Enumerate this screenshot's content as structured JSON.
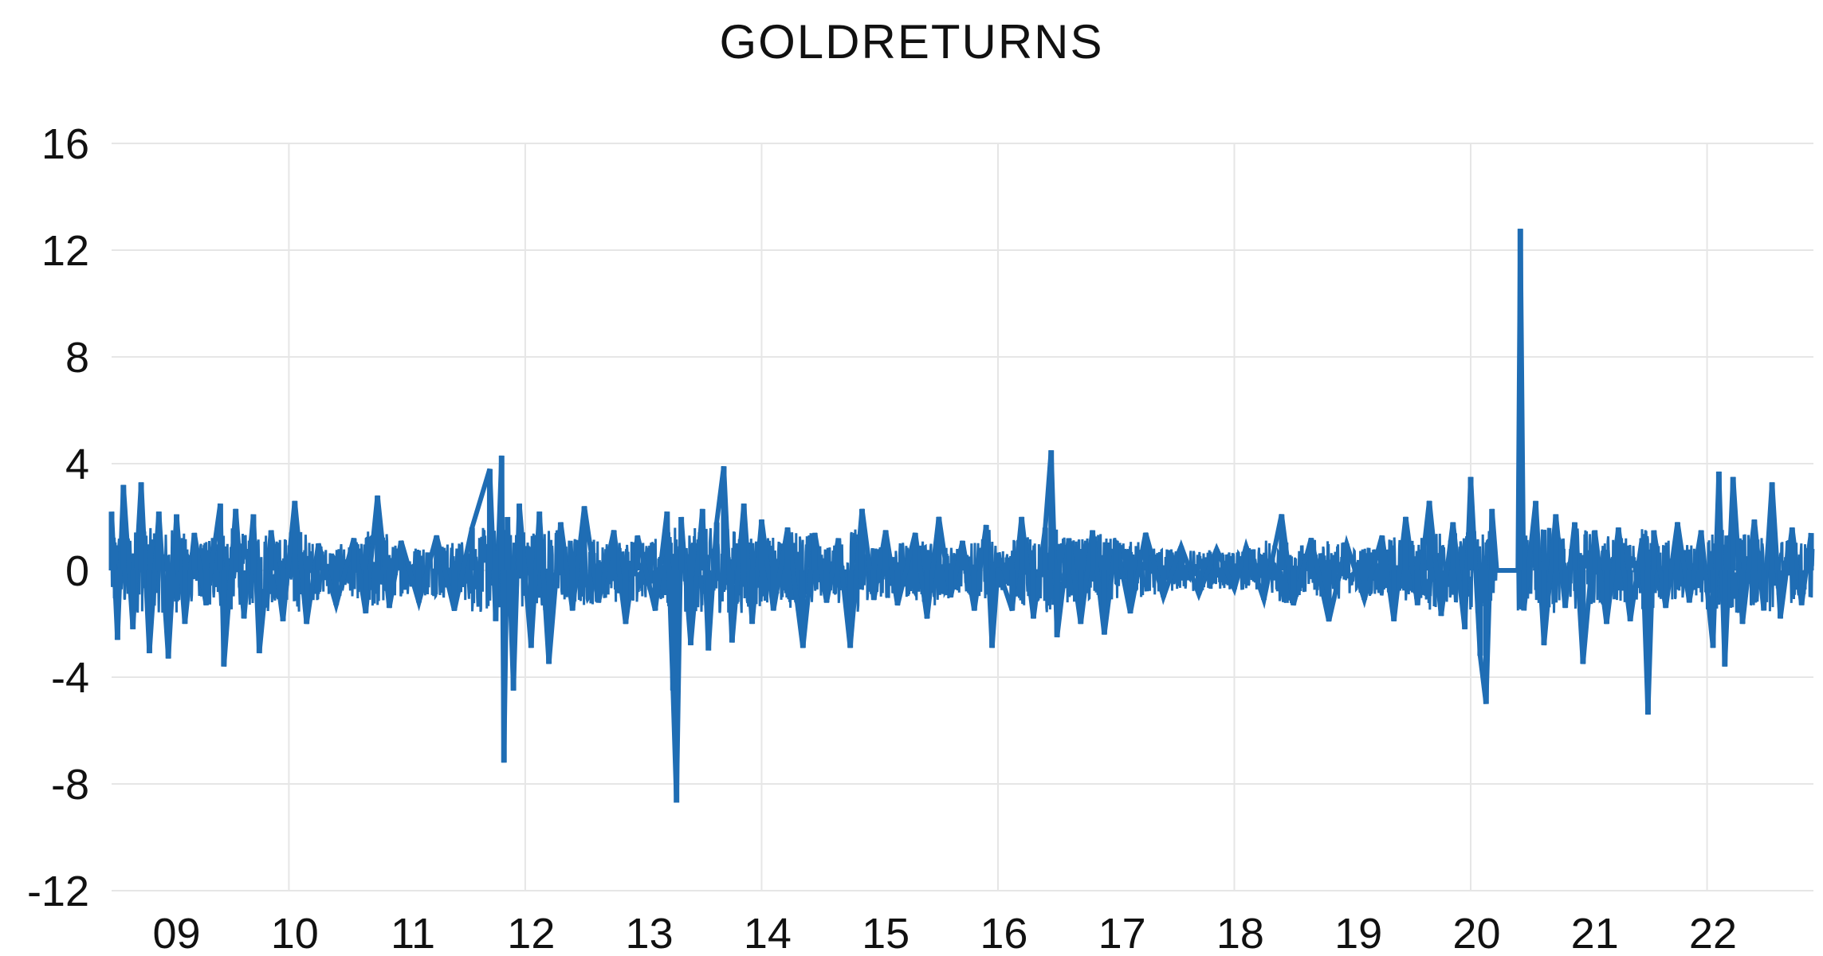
{
  "chart_data": {
    "type": "line",
    "title": "GOLDRETURNS",
    "xlabel": "",
    "ylabel": "",
    "x_ticks": [
      "09",
      "10",
      "11",
      "12",
      "13",
      "14",
      "15",
      "16",
      "17",
      "18",
      "19",
      "20",
      "21",
      "22"
    ],
    "y_ticks": [
      16,
      12,
      8,
      4,
      0,
      -4,
      -8,
      -12
    ],
    "ylim": [
      -12,
      16
    ],
    "xlim": [
      2008.5,
      2022.9
    ],
    "grid": true,
    "colors": {
      "series": "#1f6db4",
      "grid": "#e6e6e6",
      "text": "#111111"
    },
    "series": [
      {
        "values": [
          [
            2008.5,
            2.2
          ],
          [
            2008.55,
            -2.6
          ],
          [
            2008.6,
            3.2
          ],
          [
            2008.68,
            -2.2
          ],
          [
            2008.75,
            3.3
          ],
          [
            2008.82,
            -3.1
          ],
          [
            2008.9,
            2.2
          ],
          [
            2008.98,
            -3.3
          ],
          [
            2009.05,
            2.1
          ],
          [
            2009.12,
            -2.0
          ],
          [
            2009.2,
            1.4
          ],
          [
            2009.3,
            -1.3
          ],
          [
            2009.42,
            2.5
          ],
          [
            2009.45,
            -3.6
          ],
          [
            2009.55,
            2.3
          ],
          [
            2009.62,
            -1.8
          ],
          [
            2009.7,
            2.1
          ],
          [
            2009.75,
            -3.1
          ],
          [
            2009.85,
            1.5
          ],
          [
            2009.95,
            -1.9
          ],
          [
            2010.05,
            2.6
          ],
          [
            2010.15,
            -2.0
          ],
          [
            2010.25,
            1.0
          ],
          [
            2010.4,
            -1.3
          ],
          [
            2010.55,
            1.2
          ],
          [
            2010.65,
            -1.6
          ],
          [
            2010.75,
            2.8
          ],
          [
            2010.85,
            -1.4
          ],
          [
            2010.95,
            1.1
          ],
          [
            2011.1,
            -1.2
          ],
          [
            2011.25,
            1.3
          ],
          [
            2011.4,
            -1.5
          ],
          [
            2011.55,
            1.6
          ],
          [
            2011.7,
            3.8
          ],
          [
            2011.75,
            -1.9
          ],
          [
            2011.8,
            4.3
          ],
          [
            2011.82,
            -7.2
          ],
          [
            2011.85,
            2.0
          ],
          [
            2011.9,
            -4.5
          ],
          [
            2011.95,
            2.5
          ],
          [
            2012.05,
            -2.9
          ],
          [
            2012.12,
            2.2
          ],
          [
            2012.2,
            -3.5
          ],
          [
            2012.3,
            1.8
          ],
          [
            2012.4,
            -1.5
          ],
          [
            2012.5,
            2.4
          ],
          [
            2012.62,
            -1.2
          ],
          [
            2012.75,
            1.5
          ],
          [
            2012.85,
            -2.0
          ],
          [
            2012.95,
            1.3
          ],
          [
            2013.1,
            -1.5
          ],
          [
            2013.2,
            2.2
          ],
          [
            2013.25,
            -4.5
          ],
          [
            2013.28,
            -8.7
          ],
          [
            2013.32,
            2.0
          ],
          [
            2013.4,
            -2.8
          ],
          [
            2013.5,
            2.3
          ],
          [
            2013.55,
            -3.0
          ],
          [
            2013.62,
            1.8
          ],
          [
            2013.68,
            3.9
          ],
          [
            2013.75,
            -2.7
          ],
          [
            2013.85,
            2.5
          ],
          [
            2013.92,
            -2.0
          ],
          [
            2014.0,
            1.9
          ],
          [
            2014.1,
            -1.5
          ],
          [
            2014.22,
            1.6
          ],
          [
            2014.35,
            -2.9
          ],
          [
            2014.45,
            1.4
          ],
          [
            2014.55,
            -1.2
          ],
          [
            2014.65,
            1.2
          ],
          [
            2014.75,
            -2.9
          ],
          [
            2014.85,
            2.3
          ],
          [
            2014.95,
            -1.1
          ],
          [
            2015.05,
            1.5
          ],
          [
            2015.15,
            -1.3
          ],
          [
            2015.3,
            1.4
          ],
          [
            2015.4,
            -1.8
          ],
          [
            2015.5,
            2.0
          ],
          [
            2015.6,
            -1.0
          ],
          [
            2015.7,
            1.1
          ],
          [
            2015.8,
            -1.5
          ],
          [
            2015.9,
            1.7
          ],
          [
            2015.95,
            -2.9
          ],
          [
            2016.0,
            0.1
          ],
          [
            2016.12,
            -1.5
          ],
          [
            2016.2,
            2.0
          ],
          [
            2016.3,
            -1.8
          ],
          [
            2016.4,
            1.6
          ],
          [
            2016.45,
            4.5
          ],
          [
            2016.5,
            -2.5
          ],
          [
            2016.6,
            1.2
          ],
          [
            2016.7,
            -2.0
          ],
          [
            2016.8,
            1.5
          ],
          [
            2016.9,
            -2.4
          ],
          [
            2017.0,
            1.1
          ],
          [
            2017.12,
            -1.6
          ],
          [
            2017.25,
            1.4
          ],
          [
            2017.4,
            -1.0
          ],
          [
            2017.55,
            0.9
          ],
          [
            2017.7,
            -0.9
          ],
          [
            2017.85,
            0.8
          ],
          [
            2018.0,
            -0.7
          ],
          [
            2018.1,
            0.9
          ],
          [
            2018.25,
            -1.1
          ],
          [
            2018.4,
            2.1
          ],
          [
            2018.5,
            -1.3
          ],
          [
            2018.65,
            1.2
          ],
          [
            2018.8,
            -1.9
          ],
          [
            2018.95,
            1.0
          ],
          [
            2019.1,
            -1.1
          ],
          [
            2019.25,
            1.3
          ],
          [
            2019.35,
            -1.9
          ],
          [
            2019.45,
            2.0
          ],
          [
            2019.55,
            -1.3
          ],
          [
            2019.65,
            2.6
          ],
          [
            2019.75,
            -1.7
          ],
          [
            2019.85,
            1.8
          ],
          [
            2019.95,
            -2.2
          ],
          [
            2020.0,
            3.5
          ],
          [
            2020.08,
            -3.2
          ],
          [
            2020.13,
            -5.0
          ],
          [
            2020.18,
            2.3
          ],
          [
            2020.22,
            0.0
          ],
          [
            2020.32,
            0.0
          ],
          [
            2020.4,
            0.0
          ],
          [
            2020.42,
            12.8
          ],
          [
            2020.45,
            -1.5
          ],
          [
            2020.55,
            2.6
          ],
          [
            2020.62,
            -2.8
          ],
          [
            2020.72,
            2.1
          ],
          [
            2020.8,
            -1.4
          ],
          [
            2020.88,
            1.8
          ],
          [
            2020.95,
            -3.5
          ],
          [
            2021.05,
            1.5
          ],
          [
            2021.15,
            -2.0
          ],
          [
            2021.25,
            1.6
          ],
          [
            2021.35,
            -1.9
          ],
          [
            2021.45,
            1.2
          ],
          [
            2021.5,
            -5.4
          ],
          [
            2021.55,
            1.5
          ],
          [
            2021.65,
            -1.4
          ],
          [
            2021.75,
            1.8
          ],
          [
            2021.85,
            -1.2
          ],
          [
            2021.95,
            1.5
          ],
          [
            2022.05,
            -2.9
          ],
          [
            2022.1,
            3.7
          ],
          [
            2022.15,
            -3.6
          ],
          [
            2022.22,
            3.5
          ],
          [
            2022.3,
            -2.0
          ],
          [
            2022.4,
            1.9
          ],
          [
            2022.48,
            -1.5
          ],
          [
            2022.55,
            3.3
          ],
          [
            2022.62,
            -1.8
          ],
          [
            2022.72,
            1.6
          ],
          [
            2022.8,
            -1.3
          ],
          [
            2022.88,
            1.4
          ]
        ]
      }
    ]
  }
}
